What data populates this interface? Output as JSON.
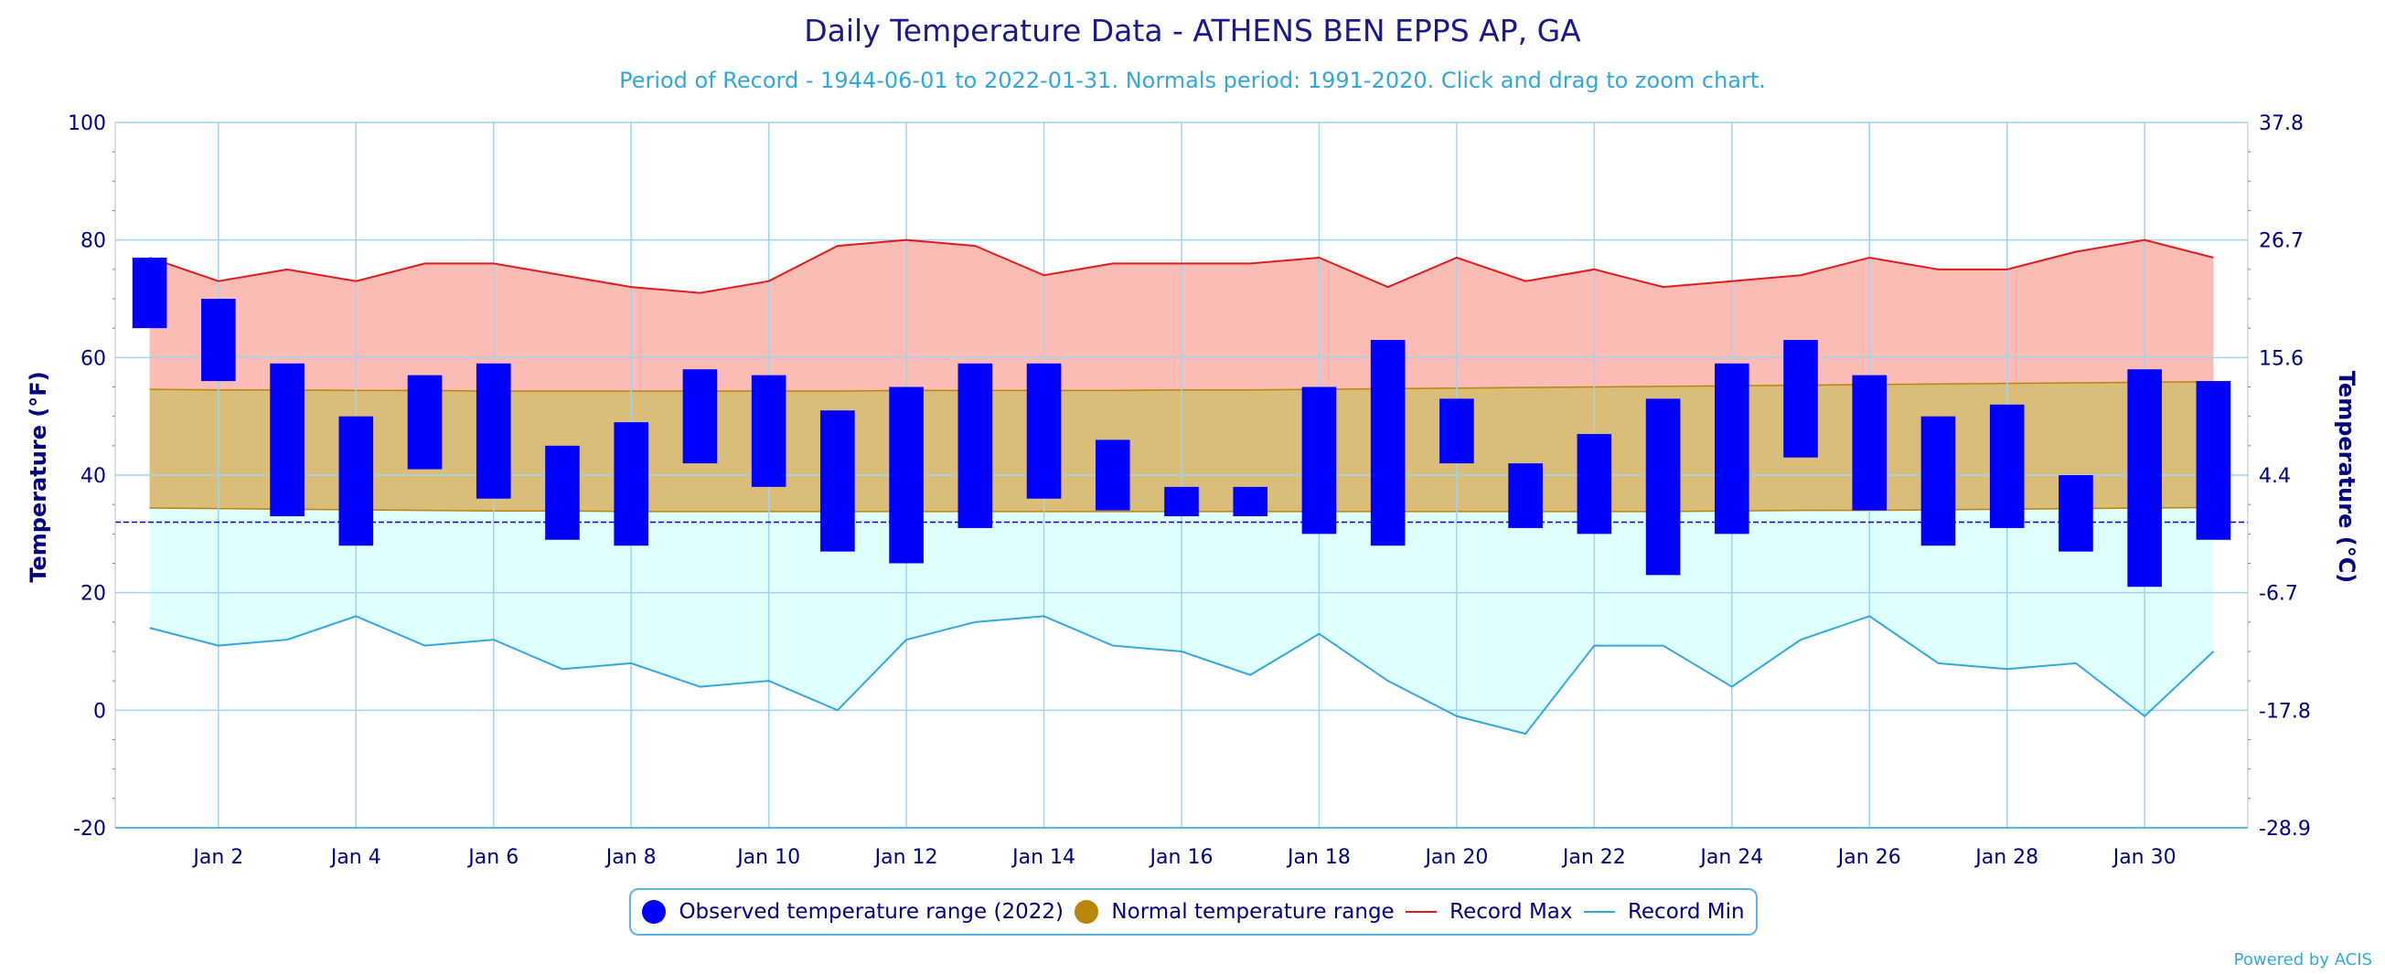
{
  "title": "Daily Temperature Data - ATHENS BEN EPPS AP, GA",
  "subtitle": "Period of Record - 1944-06-01 to 2022-01-31. Normals period: 1991-2020. Click and drag to zoom chart.",
  "credit": "Powered by ACIS",
  "legend": {
    "observed": "Observed temperature range (2022)",
    "normal": "Normal temperature range",
    "record_max": "Record Max",
    "record_min": "Record Min"
  },
  "colors": {
    "observed": "#0000ff",
    "normal_fill": "#dbbd7a",
    "normal_line": "#b8860b",
    "record_max_line": "#e31a1c",
    "record_max_fill": "#fbbcb6",
    "record_min_line": "#33a8e0",
    "record_min_fill": "#e0ffff",
    "grid": "#9fd4f2",
    "axis_text": "#000080",
    "freezing_line": "#0000cd"
  },
  "chart_data": {
    "type": "bar",
    "subtype": "floating range bars with area bands",
    "title": "Daily Temperature Data - ATHENS BEN EPPS AP, GA",
    "ylabel": "Temperature (°F)",
    "ylabel_right": "Temperature (°C)",
    "ylim": [
      -20,
      100
    ],
    "y_ticks": [
      -20,
      0,
      20,
      40,
      60,
      80,
      100
    ],
    "y_ticks_right": [
      "-28.9",
      "-17.8",
      "-6.7",
      "4.4",
      "15.6",
      "26.7",
      "37.8"
    ],
    "freezing_line": 32,
    "x_tick_labels": [
      "Jan 2",
      "Jan 4",
      "Jan 6",
      "Jan 8",
      "Jan 10",
      "Jan 12",
      "Jan 14",
      "Jan 16",
      "Jan 18",
      "Jan 20",
      "Jan 22",
      "Jan 24",
      "Jan 26",
      "Jan 28",
      "Jan 30"
    ],
    "days": [
      1,
      2,
      3,
      4,
      5,
      6,
      7,
      8,
      9,
      10,
      11,
      12,
      13,
      14,
      15,
      16,
      17,
      18,
      19,
      20,
      21,
      22,
      23,
      24,
      25,
      26,
      27,
      28,
      29,
      30,
      31
    ],
    "series": [
      {
        "name": "Observed temperature range (2022)",
        "kind": "range-bar",
        "high": [
          77,
          70,
          59,
          50,
          57,
          59,
          45,
          49,
          58,
          57,
          51,
          55,
          59,
          59,
          46,
          38,
          38,
          55,
          63,
          53,
          42,
          47,
          53,
          59,
          63,
          57,
          50,
          52,
          40,
          58,
          56
        ],
        "low": [
          65,
          56,
          33,
          28,
          41,
          36,
          29,
          28,
          42,
          38,
          27,
          25,
          31,
          36,
          34,
          33,
          33,
          30,
          28,
          42,
          31,
          30,
          23,
          30,
          43,
          34,
          28,
          31,
          27,
          21,
          29
        ]
      },
      {
        "name": "Normal temperature range",
        "kind": "range-area",
        "high": [
          54.6,
          54.5,
          54.5,
          54.4,
          54.4,
          54.3,
          54.3,
          54.3,
          54.3,
          54.3,
          54.3,
          54.4,
          54.4,
          54.4,
          54.4,
          54.5,
          54.5,
          54.6,
          54.7,
          54.8,
          54.9,
          55.0,
          55.1,
          55.2,
          55.3,
          55.4,
          55.5,
          55.6,
          55.7,
          55.8,
          55.9
        ],
        "low": [
          34.4,
          34.3,
          34.2,
          34.1,
          34.0,
          33.9,
          33.9,
          33.8,
          33.8,
          33.8,
          33.8,
          33.8,
          33.8,
          33.8,
          33.8,
          33.8,
          33.8,
          33.8,
          33.8,
          33.8,
          33.8,
          33.8,
          33.8,
          33.9,
          34.0,
          34.0,
          34.1,
          34.2,
          34.3,
          34.4,
          34.5
        ]
      },
      {
        "name": "Record Max",
        "kind": "line",
        "values": [
          77,
          73,
          75,
          73,
          76,
          76,
          74,
          72,
          71,
          73,
          79,
          80,
          79,
          74,
          76,
          76,
          76,
          77,
          72,
          77,
          73,
          75,
          72,
          73,
          74,
          77,
          75,
          75,
          78,
          80,
          77
        ]
      },
      {
        "name": "Record Min",
        "kind": "line",
        "values": [
          14,
          11,
          12,
          16,
          11,
          12,
          7,
          8,
          4,
          5,
          0,
          12,
          15,
          16,
          11,
          10,
          6,
          13,
          5,
          -1,
          -4,
          11,
          11,
          4,
          12,
          16,
          8,
          7,
          8,
          -1,
          10
        ]
      }
    ]
  }
}
